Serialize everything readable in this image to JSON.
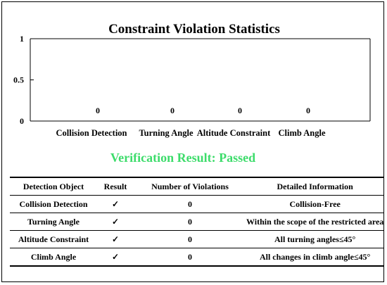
{
  "chart_data": {
    "type": "bar",
    "title": "Constraint Violation Statistics",
    "categories": [
      "Collision Detection",
      "Turning Angle",
      "Altitude Constraint",
      "Climb Angle"
    ],
    "values": [
      0,
      0,
      0,
      0
    ],
    "ylim": [
      0,
      1
    ],
    "yticks": [
      0,
      0.5,
      1
    ],
    "ytick_labels": [
      "0",
      "0.5",
      "1"
    ],
    "data_labels": [
      "0",
      "0",
      "0",
      "0"
    ],
    "xlabel": "",
    "ylabel": "",
    "grid": false,
    "bar_color": "#4472c4"
  },
  "verification": {
    "text": "Verification Result: Passed",
    "color": "#3ddc6b"
  },
  "table": {
    "headers": [
      "Detection Object",
      "Result",
      "Number of Violations",
      "Detailed Information"
    ],
    "rows": [
      [
        "Collision Detection",
        "✓",
        "0",
        "Collision-Free"
      ],
      [
        "Turning Angle",
        "✓",
        "0",
        "Within the scope of the restricted area"
      ],
      [
        "Altitude Constraint",
        "✓",
        "0",
        "All turning angles≤45°"
      ],
      [
        "Climb Angle",
        "✓",
        "0",
        "All changes in climb angle≤45°"
      ]
    ]
  }
}
